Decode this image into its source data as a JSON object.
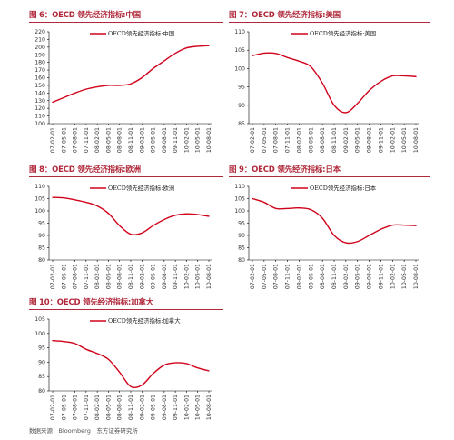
{
  "colors": {
    "title": "#b0283a",
    "line": "#d0021b",
    "axis": "#000000"
  },
  "source": "数据来源：Bloomberg　东方证券研究所",
  "chart_data": [
    {
      "type": "line",
      "title": "图 6：OECD 领先经济指标:中国",
      "legend": "OECD领先经济指标:中国",
      "legend_position": "top-center",
      "grid": false,
      "x": [
        "07-02-01",
        "07-05-01",
        "07-08-01",
        "07-11-01",
        "08-02-01",
        "08-05-01",
        "08-08-01",
        "08-11-01",
        "09-02-01",
        "09-05-01",
        "09-08-01",
        "09-11-01",
        "10-02-01",
        "10-05-01",
        "10-08-01"
      ],
      "ylim": [
        100,
        220
      ],
      "yticks": [
        100,
        110,
        120,
        130,
        140,
        150,
        160,
        170,
        180,
        190,
        200,
        210,
        220
      ],
      "series": [
        {
          "values": [
            128,
            134,
            140,
            145,
            148,
            150,
            150,
            152,
            160,
            172,
            182,
            192,
            199,
            201,
            202
          ]
        }
      ]
    },
    {
      "type": "line",
      "title": "图 7：OECD 领先经济指标:美国",
      "legend": "OECD领先经济指标:美国",
      "legend_position": "top-center",
      "grid": false,
      "x": [
        "07-02-01",
        "07-05-01",
        "07-08-01",
        "07-11-01",
        "08-02-01",
        "08-05-01",
        "08-08-01",
        "08-11-01",
        "09-02-01",
        "09-05-01",
        "09-08-01",
        "09-11-01",
        "10-02-01",
        "10-05-01",
        "10-08-01"
      ],
      "ylim": [
        85,
        110
      ],
      "yticks": [
        85,
        90,
        95,
        100,
        105,
        110
      ],
      "series": [
        {
          "values": [
            103.5,
            104.2,
            104.1,
            103,
            102,
            100.5,
            96,
            90,
            88,
            90.5,
            94,
            96.5,
            98,
            98,
            97.8
          ]
        }
      ]
    },
    {
      "type": "line",
      "title": "图 8：OECD 领先经济指标:欧洲",
      "legend": "OECD领先经济指标:欧洲",
      "legend_position": "top-center",
      "grid": false,
      "x": [
        "07-02-01",
        "07-05-01",
        "07-08-01",
        "07-11-01",
        "08-02-01",
        "08-05-01",
        "08-08-01",
        "08-11-01",
        "09-02-01",
        "09-05-01",
        "09-08-01",
        "09-11-01",
        "10-02-01",
        "10-05-01",
        "10-08-01"
      ],
      "ylim": [
        80,
        110
      ],
      "yticks": [
        80,
        85,
        90,
        95,
        100,
        105,
        110
      ],
      "series": [
        {
          "values": [
            105.5,
            105.3,
            104.5,
            103.5,
            102,
            99,
            94,
            90.5,
            91,
            94,
            96.5,
            98.2,
            98.8,
            98.5,
            97.8
          ]
        }
      ]
    },
    {
      "type": "line",
      "title": "图 9：OECD 领先经济指标:日本",
      "legend": "OECD领先经济指标:日本",
      "legend_position": "top-center",
      "grid": false,
      "x": [
        "07-02-01",
        "07-05-01",
        "07-08-01",
        "07-11-01",
        "08-02-01",
        "08-05-01",
        "08-08-01",
        "08-11-01",
        "09-02-01",
        "09-05-01",
        "09-08-01",
        "09-11-01",
        "10-02-01",
        "10-05-01",
        "10-08-01"
      ],
      "ylim": [
        80,
        110
      ],
      "yticks": [
        80,
        85,
        90,
        95,
        100,
        105,
        110
      ],
      "series": [
        {
          "values": [
            105,
            103.5,
            101,
            101,
            101.2,
            100.5,
            97,
            90,
            87,
            87.5,
            90,
            92.5,
            94.2,
            94.2,
            94
          ]
        }
      ]
    },
    {
      "type": "line",
      "title": "图 10：OECD 领先经济指标:加拿大",
      "legend": "OECD领先经济指标:加拿大",
      "legend_position": "top-center",
      "grid": false,
      "x": [
        "07-02-01",
        "07-05-01",
        "07-08-01",
        "07-11-01",
        "08-02-01",
        "08-05-01",
        "08-08-01",
        "08-11-01",
        "09-02-01",
        "09-05-01",
        "09-08-01",
        "09-11-01",
        "10-02-01",
        "10-05-01",
        "10-08-01"
      ],
      "ylim": [
        80,
        105
      ],
      "yticks": [
        80,
        85,
        90,
        95,
        100,
        105
      ],
      "series": [
        {
          "values": [
            97.5,
            97.2,
            96.5,
            94.5,
            93,
            91,
            86.5,
            81.5,
            82,
            86,
            89,
            89.8,
            89.5,
            88,
            87
          ]
        }
      ]
    }
  ]
}
